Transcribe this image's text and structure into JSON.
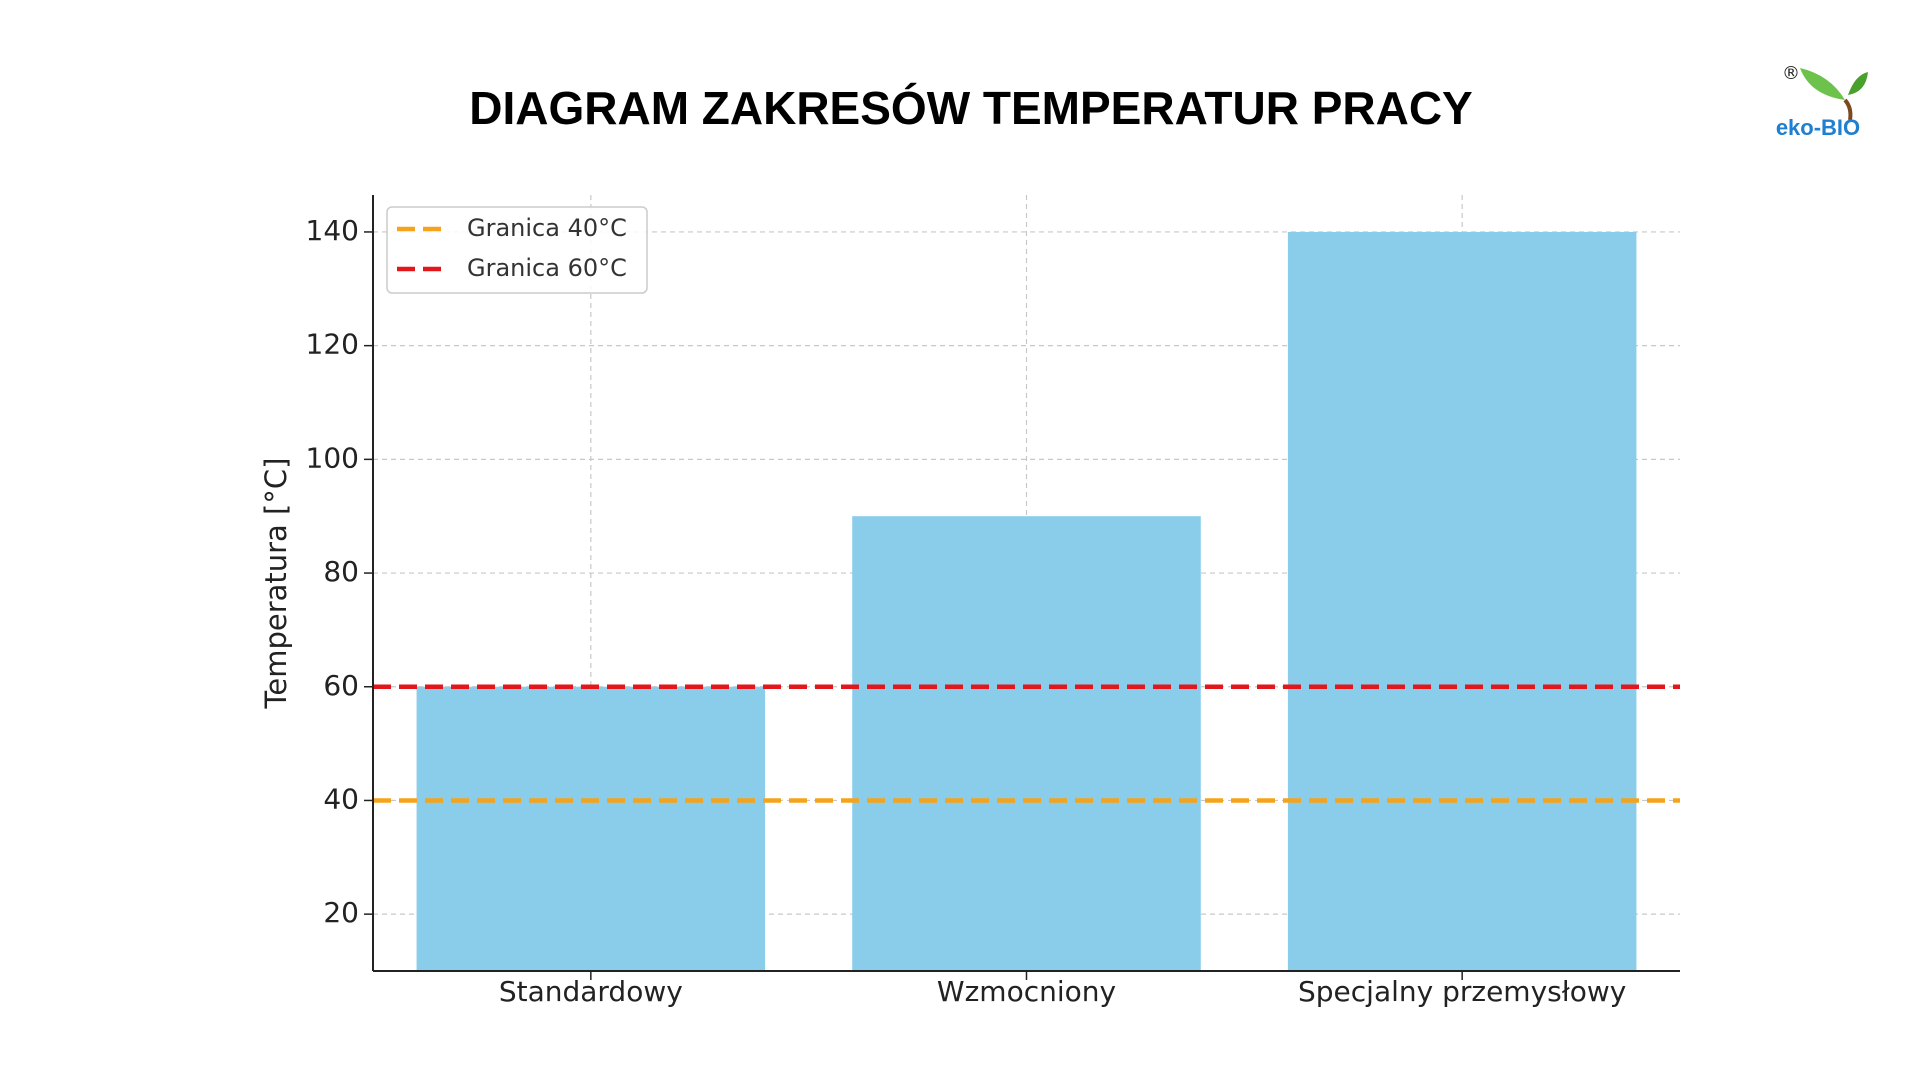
{
  "chart_data": {
    "type": "bar",
    "title": "DIAGRAM ZAKRESÓW TEMPERATUR PRACY",
    "ylabel": "Temperatura [°C]",
    "categories": [
      "Standardowy",
      "Wzmocniony",
      "Specjalny przemysłowy"
    ],
    "values": [
      60,
      90,
      140
    ],
    "color": "#89cdeb",
    "ylim": [
      10,
      146.5
    ],
    "yticks": [
      20,
      40,
      60,
      80,
      100,
      120,
      140
    ],
    "grid": true,
    "reference_lines": [
      {
        "value": 40,
        "name": "Granica 40°C",
        "color": "#f5a31a"
      },
      {
        "value": 60,
        "name": "Granica 60°C",
        "color": "#e3161b"
      }
    ],
    "legend": "upper left"
  },
  "logo": {
    "text": "eko-BIO",
    "mark": "®"
  }
}
